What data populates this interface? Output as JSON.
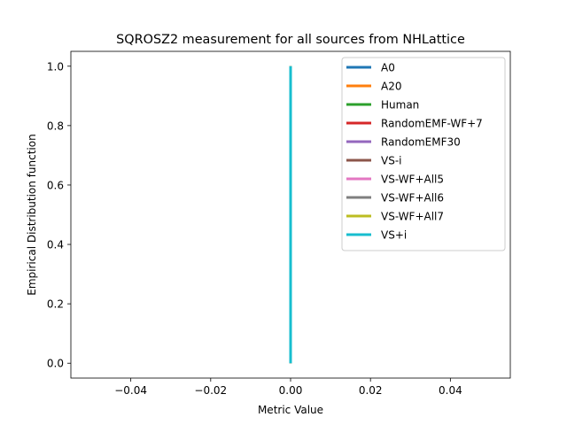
{
  "chart_data": {
    "type": "line",
    "title": "SQROSZ2 measurement for all sources from NHLattice",
    "xlabel": "Metric Value",
    "ylabel": "Empirical Distribution function",
    "xlim": [
      -0.055,
      0.055
    ],
    "ylim": [
      -0.05,
      1.05
    ],
    "xticks": [
      -0.04,
      -0.02,
      0.0,
      0.02,
      0.04
    ],
    "xtick_labels": [
      "−0.04",
      "−0.02",
      "0.00",
      "0.02",
      "0.04"
    ],
    "yticks": [
      0.0,
      0.2,
      0.4,
      0.6,
      0.8,
      1.0
    ],
    "ytick_labels": [
      "0.0",
      "0.2",
      "0.4",
      "0.6",
      "0.8",
      "1.0"
    ],
    "grid": false,
    "legend_position": "top-right",
    "series": [
      {
        "name": "A0",
        "color": "#1f77b4",
        "x": [
          0.0,
          0.0
        ],
        "y": [
          0.0,
          1.0
        ]
      },
      {
        "name": "A20",
        "color": "#ff7f0e",
        "x": [
          0.0,
          0.0
        ],
        "y": [
          0.0,
          1.0
        ]
      },
      {
        "name": "Human",
        "color": "#2ca02c",
        "x": [
          0.0,
          0.0
        ],
        "y": [
          0.0,
          1.0
        ]
      },
      {
        "name": "RandomEMF-WF+7",
        "color": "#d62728",
        "x": [
          0.0,
          0.0
        ],
        "y": [
          0.0,
          1.0
        ]
      },
      {
        "name": "RandomEMF30",
        "color": "#9467bd",
        "x": [
          0.0,
          0.0
        ],
        "y": [
          0.0,
          1.0
        ]
      },
      {
        "name": "VS-i",
        "color": "#8c564b",
        "x": [
          0.0,
          0.0
        ],
        "y": [
          0.0,
          1.0
        ]
      },
      {
        "name": "VS-WF+All5",
        "color": "#e377c2",
        "x": [
          0.0,
          0.0
        ],
        "y": [
          0.0,
          1.0
        ]
      },
      {
        "name": "VS-WF+All6",
        "color": "#7f7f7f",
        "x": [
          0.0,
          0.0
        ],
        "y": [
          0.0,
          1.0
        ]
      },
      {
        "name": "VS-WF+All7",
        "color": "#bcbd22",
        "x": [
          0.0,
          0.0
        ],
        "y": [
          0.0,
          1.0
        ]
      },
      {
        "name": "VS+i",
        "color": "#17becf",
        "x": [
          0.0,
          0.0
        ],
        "y": [
          0.0,
          1.0
        ]
      }
    ]
  }
}
